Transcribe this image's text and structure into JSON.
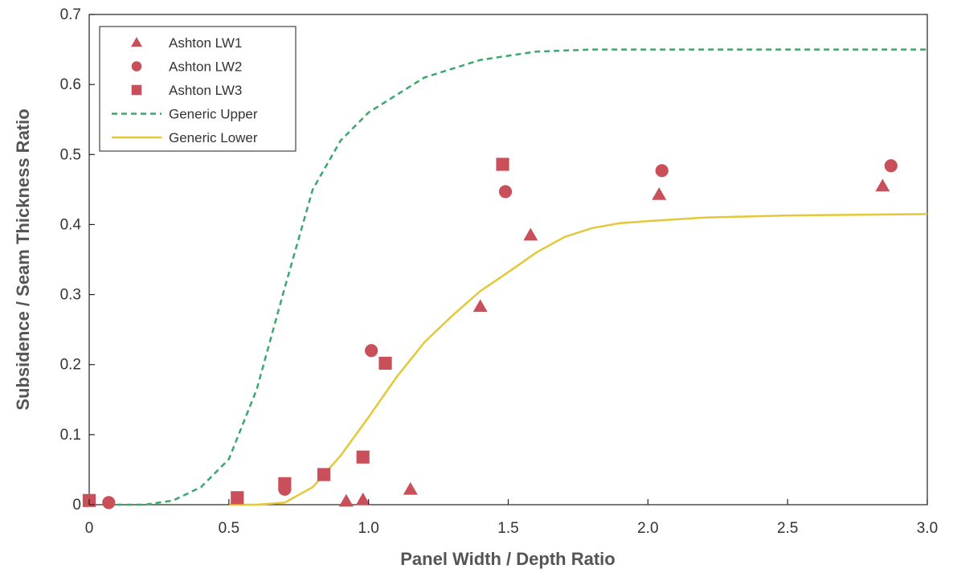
{
  "chart_data": {
    "type": "scatter",
    "xlabel": "Panel Width / Depth Ratio",
    "ylabel": "Subsidence / Seam Thickness Ratio",
    "xlim": [
      0,
      3.0
    ],
    "ylim": [
      0,
      0.7
    ],
    "x_ticks": [
      "0",
      "0.5",
      "1.0",
      "1.5",
      "2.0",
      "2.5",
      "3.0"
    ],
    "x_tick_values": [
      0,
      0.5,
      1.0,
      1.5,
      2.0,
      2.5,
      3.0
    ],
    "y_ticks": [
      "0",
      "0.1",
      "0.2",
      "0.3",
      "0.4",
      "0.5",
      "0.6",
      "0.7"
    ],
    "y_tick_values": [
      0,
      0.1,
      0.2,
      0.3,
      0.4,
      0.5,
      0.6,
      0.7
    ],
    "grid": false,
    "legend_position": "top-left",
    "series": [
      {
        "name": "Ashton LW1",
        "kind": "points",
        "marker": "triangle",
        "color": "#c9505a",
        "points": [
          [
            0.92,
            0.005
          ],
          [
            0.98,
            0.007
          ],
          [
            1.15,
            0.022
          ],
          [
            1.4,
            0.283
          ],
          [
            1.58,
            0.385
          ],
          [
            2.04,
            0.443
          ],
          [
            2.84,
            0.455
          ]
        ]
      },
      {
        "name": "Ashton LW2",
        "kind": "points",
        "marker": "circle",
        "color": "#c9505a",
        "points": [
          [
            0.07,
            0.003
          ],
          [
            0.7,
            0.022
          ],
          [
            1.01,
            0.22
          ],
          [
            1.49,
            0.447
          ],
          [
            2.05,
            0.477
          ],
          [
            2.87,
            0.484
          ]
        ]
      },
      {
        "name": "Ashton LW3",
        "kind": "points",
        "marker": "square",
        "color": "#c9505a",
        "points": [
          [
            0.0,
            0.006
          ],
          [
            0.53,
            0.01
          ],
          [
            0.7,
            0.03
          ],
          [
            0.84,
            0.043
          ],
          [
            0.98,
            0.068
          ],
          [
            1.06,
            0.202
          ],
          [
            1.48,
            0.486
          ]
        ]
      },
      {
        "name": "Generic Upper",
        "kind": "line",
        "style": "dashed",
        "color": "#3aa86a",
        "points": [
          [
            0.1,
            0.0
          ],
          [
            0.2,
            0.0
          ],
          [
            0.3,
            0.006
          ],
          [
            0.4,
            0.025
          ],
          [
            0.5,
            0.065
          ],
          [
            0.6,
            0.165
          ],
          [
            0.7,
            0.31
          ],
          [
            0.8,
            0.45
          ],
          [
            0.9,
            0.52
          ],
          [
            1.0,
            0.56
          ],
          [
            1.2,
            0.61
          ],
          [
            1.4,
            0.635
          ],
          [
            1.6,
            0.647
          ],
          [
            1.8,
            0.65
          ],
          [
            2.0,
            0.65
          ],
          [
            3.0,
            0.65
          ]
        ]
      },
      {
        "name": "Generic Lower",
        "kind": "line",
        "style": "solid",
        "color": "#e3c83a",
        "points": [
          [
            0.5,
            0.0
          ],
          [
            0.6,
            0.0
          ],
          [
            0.7,
            0.003
          ],
          [
            0.8,
            0.025
          ],
          [
            0.9,
            0.07
          ],
          [
            1.0,
            0.125
          ],
          [
            1.1,
            0.182
          ],
          [
            1.2,
            0.232
          ],
          [
            1.3,
            0.27
          ],
          [
            1.4,
            0.305
          ],
          [
            1.5,
            0.332
          ],
          [
            1.6,
            0.36
          ],
          [
            1.7,
            0.382
          ],
          [
            1.8,
            0.395
          ],
          [
            1.9,
            0.402
          ],
          [
            2.0,
            0.405
          ],
          [
            2.2,
            0.41
          ],
          [
            2.5,
            0.413
          ],
          [
            3.0,
            0.415
          ]
        ]
      }
    ]
  }
}
